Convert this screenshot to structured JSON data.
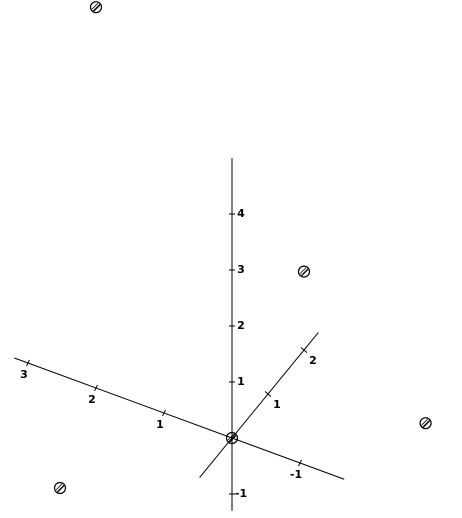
{
  "chart_data": {
    "type": "scatter3d",
    "x": [
      2,
      0,
      -2,
      2,
      0
    ],
    "y": [
      0,
      2,
      1.6,
      -1,
      0
    ],
    "z": [
      6.8,
      1.4,
      -0.1,
      -1,
      0
    ],
    "color": "#000000",
    "xlim": [
      -1.65,
      3.2
    ],
    "ylim": [
      -0.9,
      2.4
    ],
    "zlim": [
      -1.3,
      5
    ],
    "xticks": [
      -1,
      1,
      2,
      3
    ],
    "yticks": [
      1,
      2
    ],
    "zticks": [
      -1,
      1,
      2,
      3,
      4
    ]
  }
}
